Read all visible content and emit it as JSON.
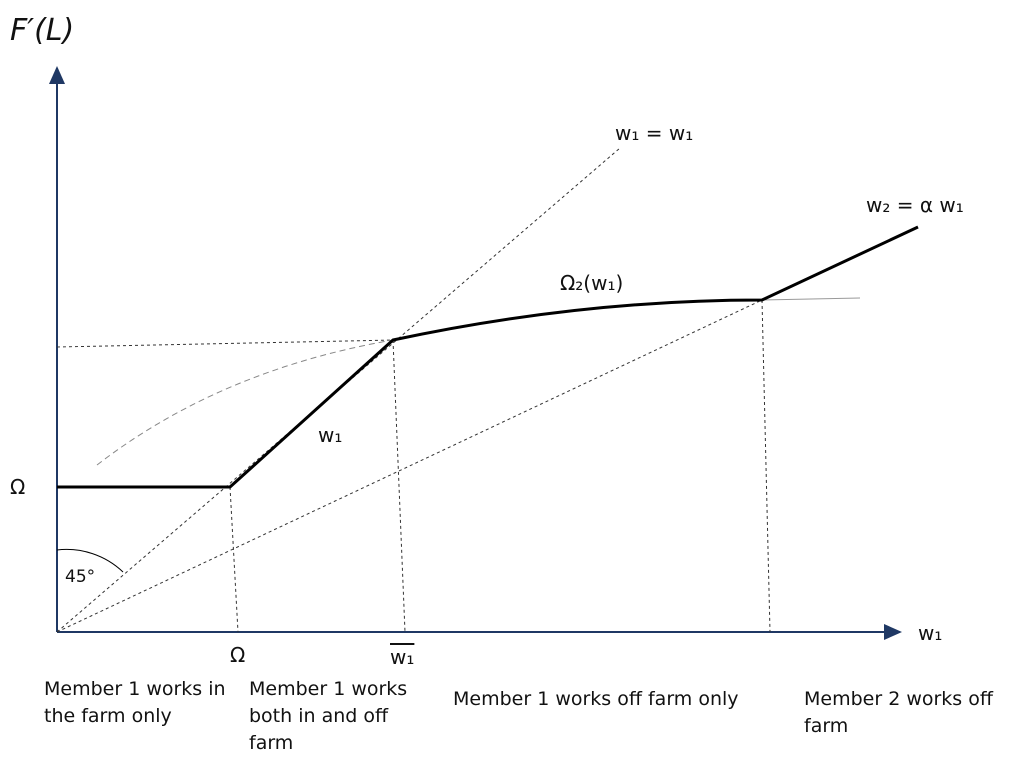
{
  "y_axis_label": "F′(L)",
  "line_labels": {
    "diagonal": "w₁ = w₁",
    "upper_segment": "w₂ = α w₁",
    "curve": "Ω₂(w₁)",
    "middle_segment": "w₁"
  },
  "y_marks": {
    "omega": "Ω",
    "angle": "45°"
  },
  "x_marks": {
    "omega": "Ω",
    "w_bar": "w₁",
    "axis": "w₁"
  },
  "regions": [
    "Member 1 works in the farm only",
    "Member 1 works both in  and off farm",
    "Member 1 works off farm only",
    "Member 2 works off farm"
  ]
}
